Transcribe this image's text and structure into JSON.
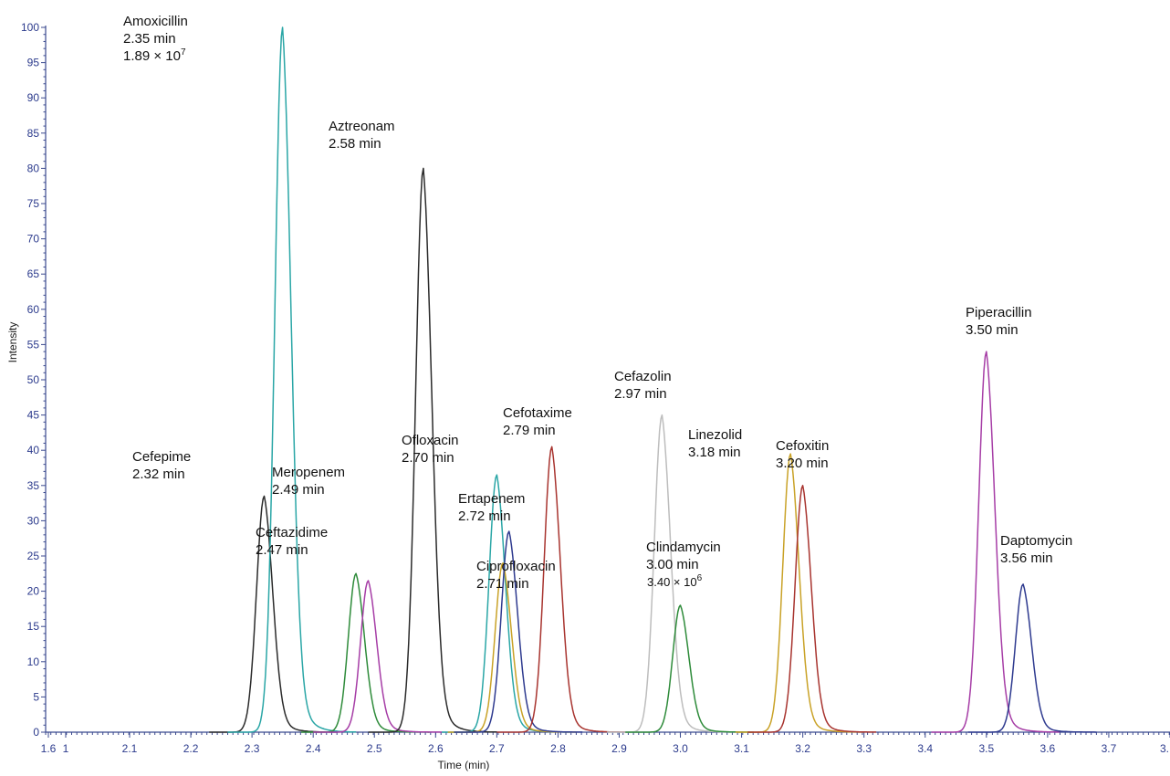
{
  "chart_data": {
    "type": "line",
    "title": "",
    "xlabel": "Time (min)",
    "ylabel": "Intensity",
    "xlim": [
      1.6,
      3.8
    ],
    "ylim": [
      0,
      100
    ],
    "x_ticks": [
      "1.6",
      "1",
      "2.1",
      "2.2",
      "2.3",
      "2.4",
      "2.5",
      "2.6",
      "2.7",
      "2.8",
      "2.9",
      "3.0",
      "3.1",
      "3.2",
      "3.3",
      "3.4",
      "3.5",
      "3.6",
      "3.7",
      "3."
    ],
    "y_ticks": [
      "0",
      "5",
      "10",
      "15",
      "20",
      "25",
      "30",
      "35",
      "40",
      "45",
      "50",
      "55",
      "60",
      "65",
      "70",
      "75",
      "80",
      "85",
      "90",
      "95",
      "100"
    ],
    "grid": false,
    "legend": "none",
    "series": [
      {
        "name": "Cefepime",
        "retention_time": 2.32,
        "peak_height": 33.5,
        "color": "#2b2b2b"
      },
      {
        "name": "Amoxicillin",
        "retention_time": 2.35,
        "peak_height": 100,
        "color": "#2aa6a6"
      },
      {
        "name": "Ceftazidime",
        "retention_time": 2.47,
        "peak_height": 22.5,
        "color": "#2e8b3a"
      },
      {
        "name": "Meropenem",
        "retention_time": 2.49,
        "peak_height": 21.5,
        "color": "#a63da6"
      },
      {
        "name": "Aztreonam",
        "retention_time": 2.58,
        "peak_height": 80,
        "color": "#2b2b2b"
      },
      {
        "name": "Ofloxacin",
        "retention_time": 2.7,
        "peak_height": 36.5,
        "color": "#2aa6a6"
      },
      {
        "name": "Ciprofloxacin",
        "retention_time": 2.71,
        "peak_height": 24,
        "color": "#c9a227"
      },
      {
        "name": "Ertapenem",
        "retention_time": 2.72,
        "peak_height": 28.5,
        "color": "#2e3a8f"
      },
      {
        "name": "Cefotaxime",
        "retention_time": 2.79,
        "peak_height": 40.5,
        "color": "#a8342f"
      },
      {
        "name": "Cefazolin",
        "retention_time": 2.97,
        "peak_height": 45,
        "color": "#bdbdbd"
      },
      {
        "name": "Clindamycin",
        "retention_time": 3.0,
        "peak_height": 18,
        "color": "#2e8b3a"
      },
      {
        "name": "Linezolid",
        "retention_time": 3.18,
        "peak_height": 39.5,
        "color": "#c9a227"
      },
      {
        "name": "Cefoxitin",
        "retention_time": 3.2,
        "peak_height": 35,
        "color": "#a8342f"
      },
      {
        "name": "Piperacillin",
        "retention_time": 3.5,
        "peak_height": 54,
        "color": "#a63da6"
      },
      {
        "name": "Daptomycin",
        "retention_time": 3.56,
        "peak_height": 21,
        "color": "#2e3a8f"
      }
    ],
    "annotations": [
      {
        "name": "Amoxicillin",
        "time": "2.35 min",
        "extra_base": "1.89 × 10",
        "extra_exp": "7"
      },
      {
        "name": "Aztreonam",
        "time": "2.58 min"
      },
      {
        "name": "Cefepime",
        "time": "2.32 min"
      },
      {
        "name": "Meropenem",
        "time": "2.49 min"
      },
      {
        "name": "Ceftazidime",
        "time": "2.47 min"
      },
      {
        "name": "Ofloxacin",
        "time": "2.70 min"
      },
      {
        "name": "Ertapenem",
        "time": "2.72 min"
      },
      {
        "name": "Ciprofloxacin",
        "time": "2.71 min"
      },
      {
        "name": "Cefotaxime",
        "time": "2.79 min"
      },
      {
        "name": "Cefazolin",
        "time": "2.97 min"
      },
      {
        "name": "Clindamycin",
        "time": "3.00 min",
        "extra_base": "3.40 × 10",
        "extra_exp": "6"
      },
      {
        "name": "Linezolid",
        "time": "3.18 min"
      },
      {
        "name": "Cefoxitin",
        "time": "3.20 min"
      },
      {
        "name": "Piperacillin",
        "time": "3.50 min"
      },
      {
        "name": "Daptomycin",
        "time": "3.56 min"
      }
    ]
  }
}
